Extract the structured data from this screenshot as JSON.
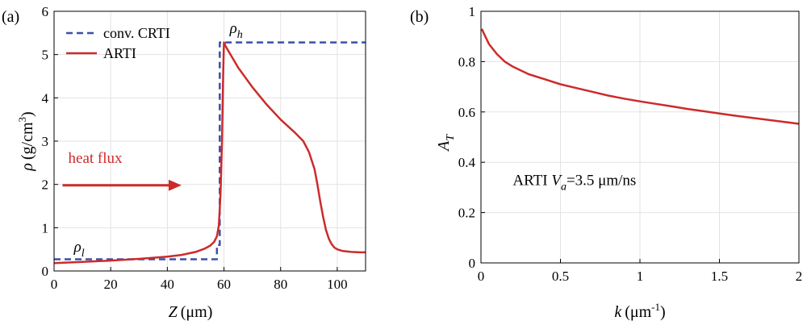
{
  "chart_data": [
    {
      "panel_label": "(a)",
      "type": "line",
      "xlabel_main": "Z",
      "xlabel_unit": "(μm)",
      "ylabel_main": "ρ",
      "ylabel_unit": "(g/cm",
      "ylabel_sup": "3",
      "ylabel_close": ")",
      "xlim": [
        0,
        110
      ],
      "ylim": [
        0,
        6
      ],
      "xticks": [
        0,
        20,
        40,
        60,
        80,
        100
      ],
      "yticks": [
        0,
        1,
        2,
        3,
        4,
        5,
        6
      ],
      "grid": true,
      "legend_position": "top-left",
      "series": [
        {
          "name": "conv. CRTI",
          "style": "dashed",
          "color": "#3b4fa8",
          "x": [
            0,
            57.5,
            57.5,
            58.5,
            58.5,
            110
          ],
          "y": [
            0.27,
            0.27,
            0.6,
            0.6,
            5.28,
            5.28
          ]
        },
        {
          "name": "ARTI",
          "style": "solid",
          "color": "#cc2b2b",
          "x": [
            0,
            10,
            20,
            30,
            40,
            45,
            50,
            53,
            55,
            56.5,
            57.5,
            58.2,
            58.8,
            59.3,
            59.7,
            60,
            60.5,
            65,
            70,
            75,
            80,
            85,
            88,
            90,
            92,
            93,
            94,
            95,
            96,
            97,
            98,
            99,
            100,
            102,
            105,
            108,
            110
          ],
          "y": [
            0.18,
            0.21,
            0.24,
            0.28,
            0.33,
            0.37,
            0.44,
            0.51,
            0.58,
            0.67,
            0.8,
            1.05,
            1.8,
            3.0,
            4.5,
            5.28,
            5.2,
            4.7,
            4.25,
            3.85,
            3.5,
            3.2,
            3.0,
            2.75,
            2.35,
            2.0,
            1.6,
            1.25,
            0.95,
            0.75,
            0.62,
            0.54,
            0.5,
            0.46,
            0.44,
            0.43,
            0.43
          ]
        }
      ],
      "annotations": [
        {
          "text": "heat flux",
          "color": "#cc2b2b",
          "x": 5,
          "y": 2.5
        },
        {
          "text_main": "ρ",
          "text_sub": "l",
          "x": 7,
          "y": 0.45
        },
        {
          "text_main": "ρ",
          "text_sub": "h",
          "x": 62,
          "y": 5.5
        }
      ],
      "arrow": {
        "color": "#cc2b2b",
        "x0": 3,
        "x1": 45,
        "y": 1.98
      }
    },
    {
      "panel_label": "(b)",
      "type": "line",
      "xlabel_main": "k",
      "xlabel_unit": "(μm",
      "xlabel_sup": "-1",
      "xlabel_close": ")",
      "ylabel_main": "A",
      "ylabel_sub": "T",
      "xlim": [
        0,
        2
      ],
      "ylim": [
        0,
        1
      ],
      "xticks": [
        0,
        0.5,
        1,
        1.5,
        2
      ],
      "yticks": [
        0,
        0.2,
        0.4,
        0.6,
        0.8,
        1
      ],
      "ytick_labels": [
        "0",
        "0.2",
        "0.4",
        "0.6",
        "0.8",
        "1"
      ],
      "grid": true,
      "series": [
        {
          "name": "ARTI",
          "style": "solid",
          "color": "#cc2b2b",
          "x": [
            0.005,
            0.02,
            0.05,
            0.1,
            0.15,
            0.2,
            0.3,
            0.4,
            0.5,
            0.6,
            0.7,
            0.8,
            0.9,
            1.0,
            1.1,
            1.2,
            1.3,
            1.4,
            1.5,
            1.6,
            1.7,
            1.8,
            1.9,
            2.0
          ],
          "y": [
            0.93,
            0.91,
            0.87,
            0.83,
            0.8,
            0.78,
            0.75,
            0.73,
            0.71,
            0.695,
            0.68,
            0.665,
            0.653,
            0.642,
            0.632,
            0.622,
            0.612,
            0.603,
            0.594,
            0.585,
            0.577,
            0.569,
            0.561,
            0.553
          ]
        }
      ],
      "annotation": {
        "prefix": "ARTI ",
        "var": "V",
        "var_sub": "a",
        "value": "=3.5 ",
        "unit": "μm/ns",
        "x": 0.2,
        "y": 0.31
      }
    }
  ]
}
